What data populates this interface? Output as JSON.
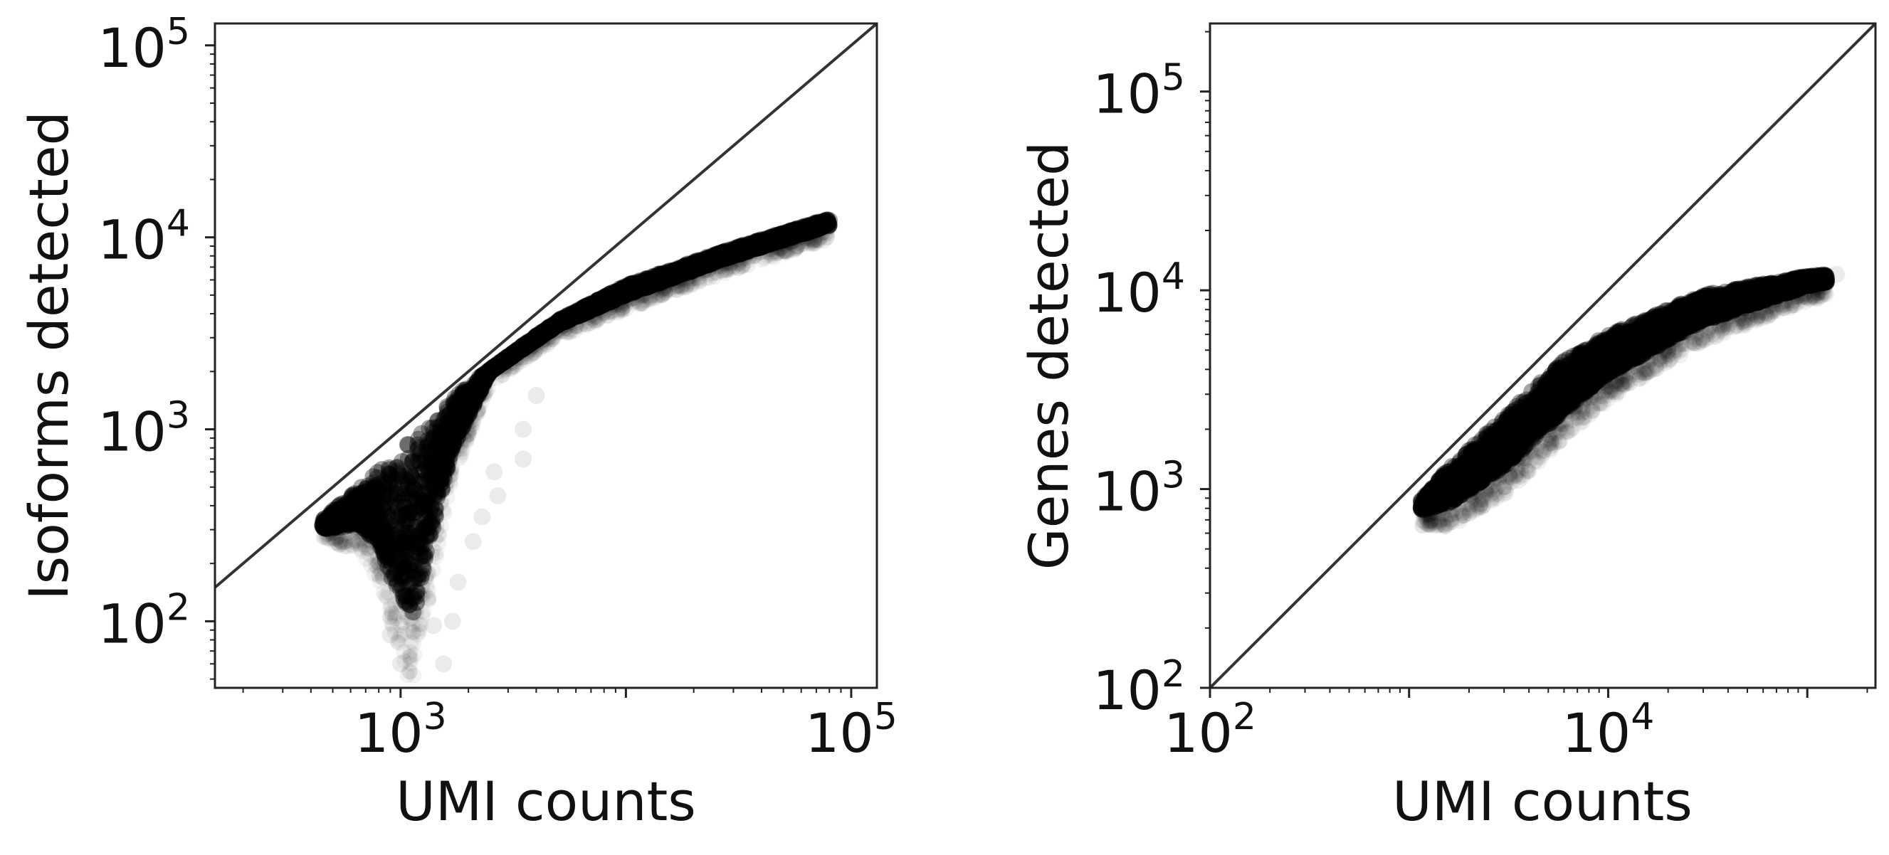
{
  "chart_data": [
    {
      "type": "scatter",
      "xlabel": "UMI counts",
      "ylabel": "Isoforms detected",
      "xscale": "log",
      "yscale": "log",
      "xlim": [
        150,
        130000
      ],
      "ylim": [
        45,
        130000
      ],
      "x_ticks": [
        {
          "value": 1000,
          "base": "10",
          "exp": "3"
        },
        {
          "value": 100000,
          "base": "10",
          "exp": "5"
        }
      ],
      "y_ticks": [
        {
          "value": 100,
          "base": "10",
          "exp": "2"
        },
        {
          "value": 1000,
          "base": "10",
          "exp": "3"
        },
        {
          "value": 10000,
          "base": "10",
          "exp": "4"
        },
        {
          "value": 100000,
          "base": "10",
          "exp": "5"
        }
      ],
      "diagonal": "y = x",
      "marker_color": "#000000",
      "grid": false,
      "series": [
        {
          "upper_edge": [
            [
              450,
              340
            ],
            [
              700,
              520
            ],
            [
              1000,
              800
            ],
            [
              2000,
              1700
            ],
            [
              5000,
              3700
            ],
            [
              10000,
              5600
            ],
            [
              30000,
              8800
            ],
            [
              80000,
              12500
            ]
          ],
          "lower_edge": [
            [
              450,
              300
            ],
            [
              650,
              320
            ],
            [
              800,
              250
            ],
            [
              1000,
              130
            ],
            [
              1150,
              110
            ],
            [
              1300,
              220
            ],
            [
              1700,
              800
            ],
            [
              2500,
              2000
            ],
            [
              5000,
              3500
            ],
            [
              10000,
              5000
            ],
            [
              30000,
              8000
            ],
            [
              80000,
              11500
            ]
          ],
          "outliers": [
            [
              1000,
              60
            ],
            [
              1550,
              60
            ],
            [
              1200,
              140
            ],
            [
              1800,
              160
            ],
            [
              2300,
              350
            ],
            [
              2700,
              450
            ],
            [
              3500,
              700
            ],
            [
              3500,
              1000
            ],
            [
              4000,
              1500
            ],
            [
              2100,
              260
            ],
            [
              1400,
              95
            ],
            [
              900,
              85
            ],
            [
              1700,
              100
            ],
            [
              2600,
              600
            ]
          ]
        }
      ]
    },
    {
      "type": "scatter",
      "xlabel": "UMI counts",
      "ylabel": "Genes detected",
      "xscale": "log",
      "yscale": "log",
      "xlim": [
        100,
        220000
      ],
      "ylim": [
        100,
        220000
      ],
      "x_ticks": [
        {
          "value": 100,
          "base": "10",
          "exp": "2"
        },
        {
          "value": 10000,
          "base": "10",
          "exp": "4"
        }
      ],
      "y_ticks": [
        {
          "value": 100,
          "base": "10",
          "exp": "2"
        },
        {
          "value": 1000,
          "base": "10",
          "exp": "3"
        },
        {
          "value": 10000,
          "base": "10",
          "exp": "4"
        },
        {
          "value": 100000,
          "base": "10",
          "exp": "5"
        }
      ],
      "diagonal": "y = x",
      "marker_color": "#000000",
      "grid": false,
      "series": [
        {
          "upper_edge": [
            [
              1150,
              880
            ],
            [
              1500,
              1200
            ],
            [
              3000,
              2300
            ],
            [
              6000,
              4400
            ],
            [
              10000,
              6000
            ],
            [
              30000,
              9500
            ],
            [
              100000,
              11800
            ],
            [
              125000,
              12000
            ]
          ],
          "lower_edge": [
            [
              1150,
              780
            ],
            [
              1600,
              850
            ],
            [
              3000,
              1300
            ],
            [
              6000,
              2500
            ],
            [
              10000,
              3800
            ],
            [
              30000,
              7000
            ],
            [
              100000,
              10500
            ],
            [
              125000,
              11000
            ]
          ],
          "outliers": [
            [
              2000,
              900
            ],
            [
              5000,
              1700
            ],
            [
              12000,
              3500
            ],
            [
              20000,
              5000
            ],
            [
              60000,
              9000
            ],
            [
              140000,
              12000
            ],
            [
              1400,
              760
            ]
          ]
        }
      ]
    }
  ]
}
